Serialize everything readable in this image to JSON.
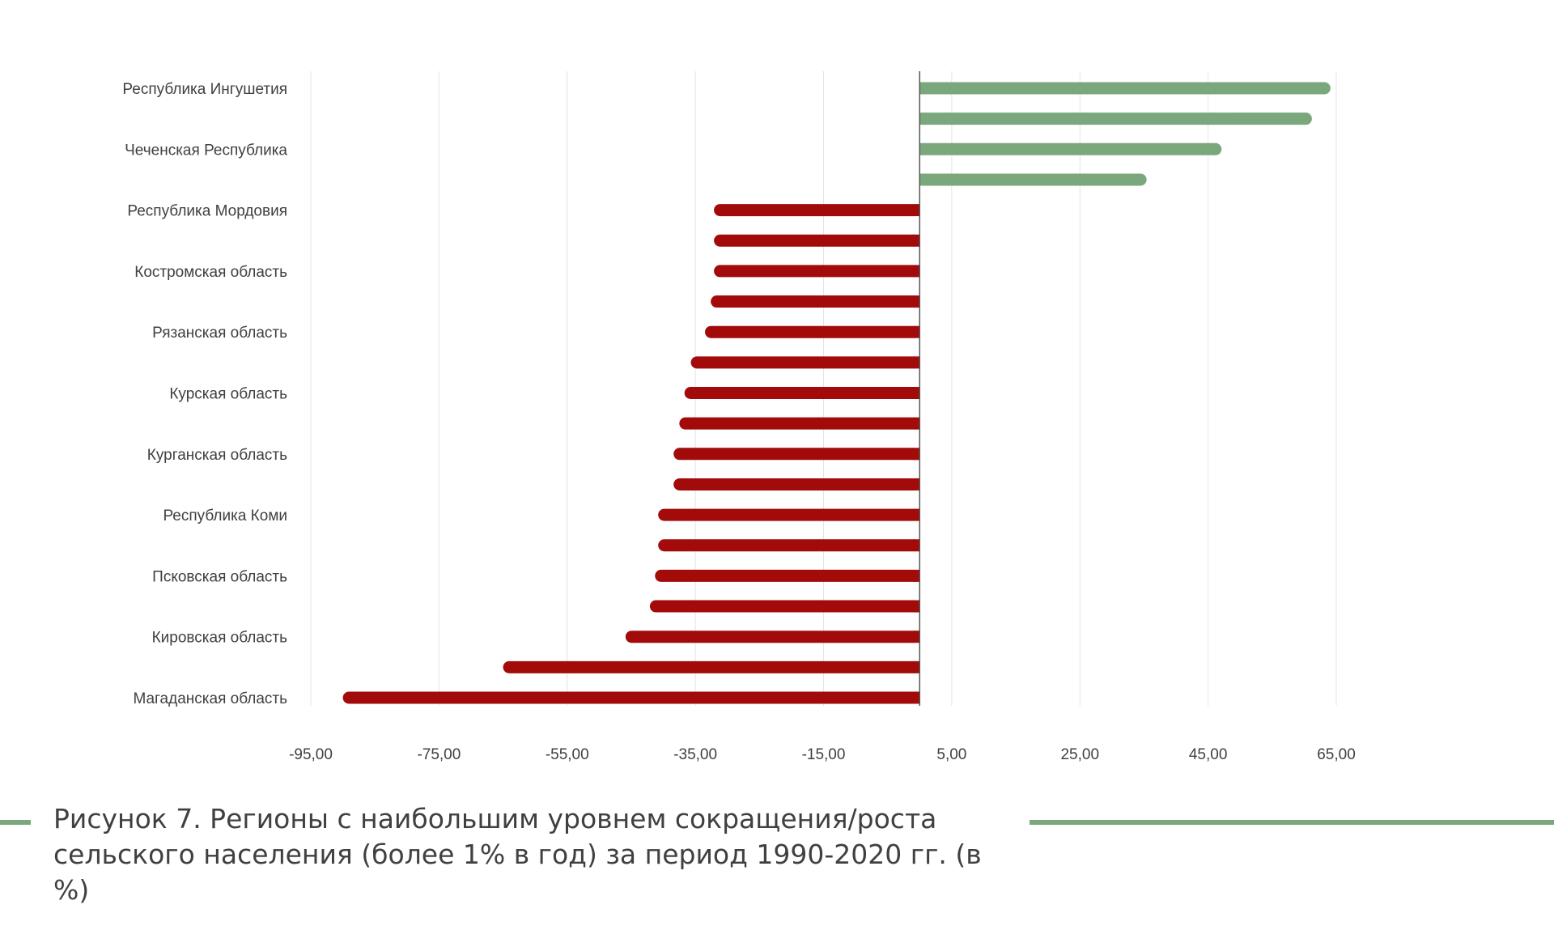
{
  "chart_data": {
    "type": "bar",
    "orientation": "horizontal",
    "categories": [
      "Республика Ингушетия",
      "",
      "Чеченская Республика",
      "",
      "Республика Мордовия",
      "",
      "Костромская область",
      "",
      "Рязанская область",
      "",
      "Курская область",
      "",
      "Курганская область",
      "",
      "Республика Коми",
      "",
      "Псковская область",
      "",
      "Кировская область",
      "",
      "Магаданская область"
    ],
    "values": [
      64.1,
      61.2,
      47.1,
      35.4,
      -32.1,
      -32.1,
      -32.1,
      -32.6,
      -33.5,
      -35.7,
      -36.7,
      -37.5,
      -38.4,
      -38.4,
      -40.8,
      -40.8,
      -41.3,
      -42.1,
      -45.9,
      -65.0,
      -90.0
    ],
    "xlim": [
      -95,
      75
    ],
    "xticks": [
      -95,
      -75,
      -55,
      -35,
      -15,
      5,
      25,
      45,
      65
    ],
    "xtick_labels": [
      "-95,00",
      "-75,00",
      "-55,00",
      "-35,00",
      "-15,00",
      "5,00",
      "25,00",
      "45,00",
      "65,00"
    ],
    "grid": true,
    "colors": {
      "positive": "#7ba77d",
      "negative": "#a30b0b",
      "grid": "#e4e4e4",
      "axis": "#555555"
    }
  },
  "caption": {
    "text": "Рисунок 7. Регионы с наибольшим уровнем сокращения/роста\nсельского населения (более 1% в год) за период 1990-2020 гг. (в %)",
    "line_color": "#7ba77d"
  }
}
